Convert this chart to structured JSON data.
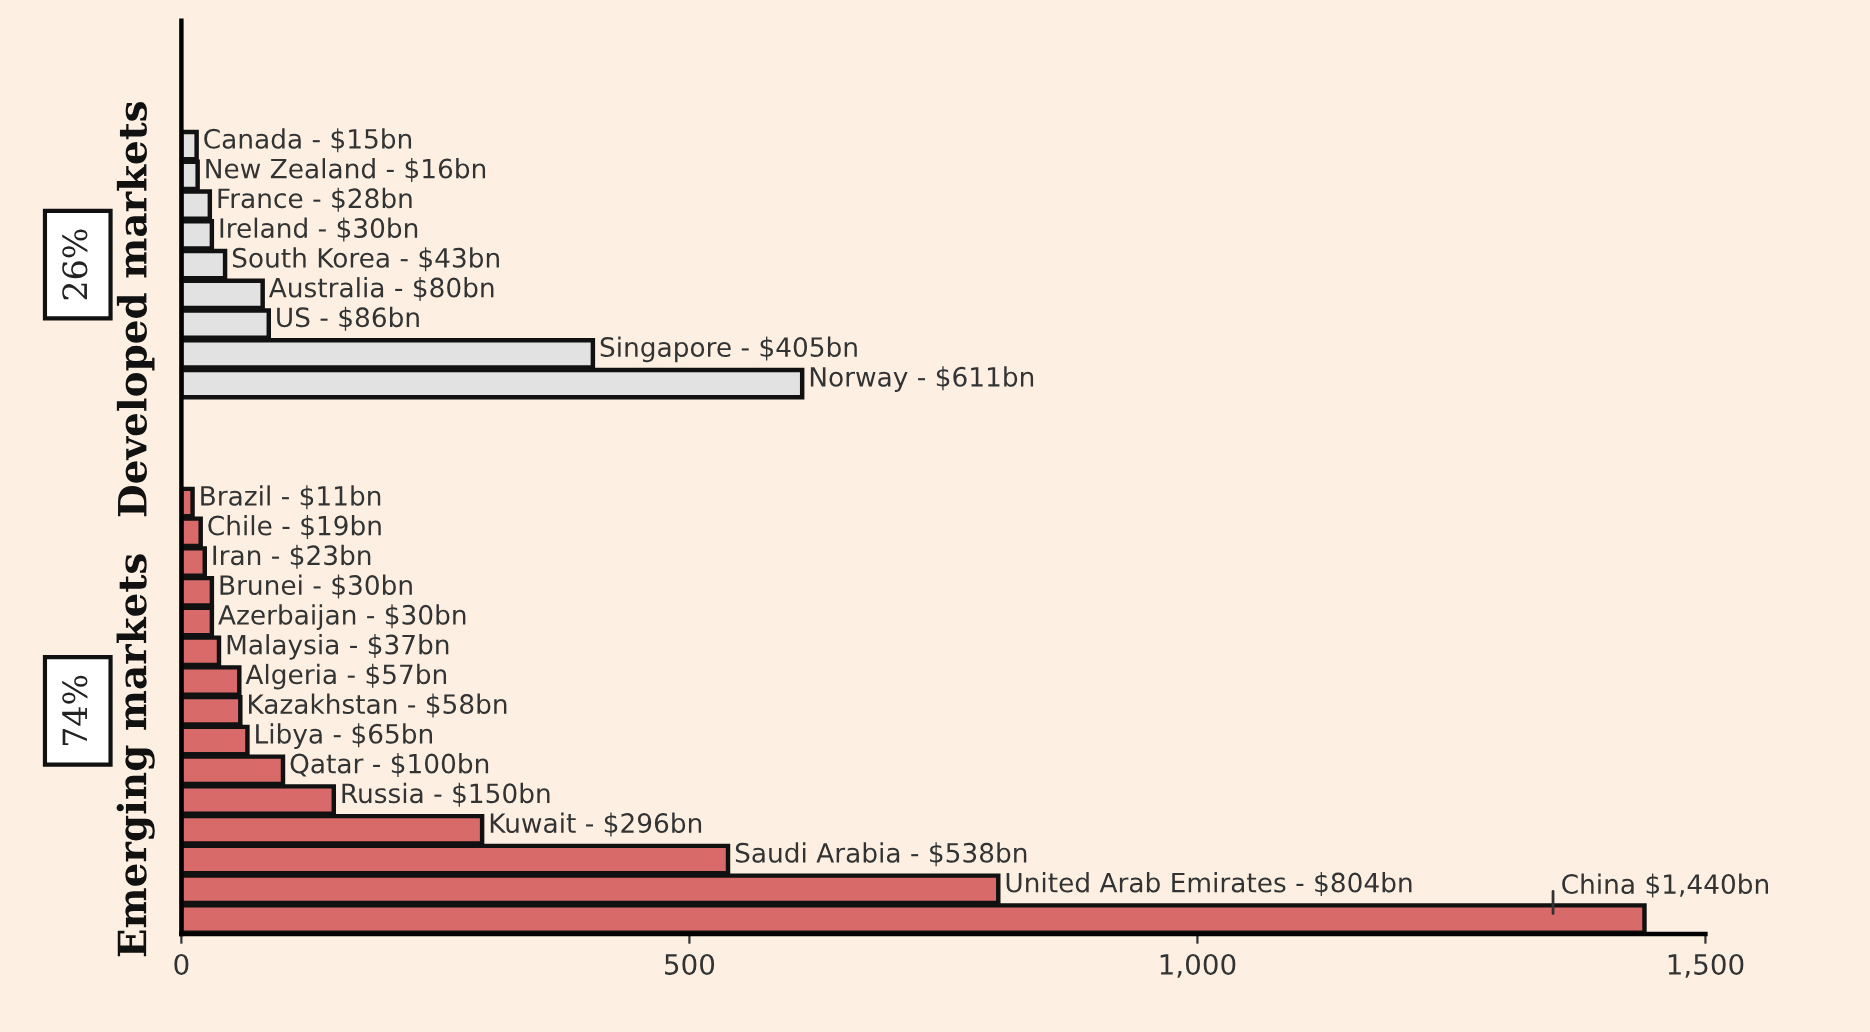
{
  "chart_data": {
    "type": "bar",
    "orientation": "horizontal",
    "categories": [
      null,
      null,
      null,
      "Canada - $15bn",
      "New Zealand - $16bn",
      "France - $28bn",
      "Ireland - $30bn",
      "South Korea - $43bn",
      "Australia - $80bn",
      "US - $86bn",
      "Singapore - $405bn",
      "Norway - $611bn",
      null,
      null,
      null,
      "Brazil - $11bn",
      "Chile - $19bn",
      "Iran - $23bn",
      "Brunei - $30bn",
      "Azerbaijan - $30bn",
      "Malaysia - $37bn",
      "Algeria - $57bn",
      "Kazakhstan - $58bn",
      "Libya - $65bn",
      "Qatar - $100bn",
      "Russia - $150bn",
      "Kuwait - $296bn",
      "Saudi Arabia - $538bn",
      "United Arab Emirates - $804bn",
      null
    ],
    "values": [
      null,
      null,
      null,
      15,
      16,
      28,
      30,
      43,
      80,
      86,
      405,
      611,
      null,
      null,
      null,
      11,
      19,
      23,
      30,
      30,
      37,
      57,
      58,
      65,
      100,
      150,
      296,
      538,
      804,
      1440
    ],
    "colors": [
      null,
      null,
      null,
      "#e2e2e2",
      "#e2e2e2",
      "#e2e2e2",
      "#e2e2e2",
      "#e2e2e2",
      "#e2e2e2",
      "#e2e2e2",
      "#e2e2e2",
      "#e2e2e2",
      null,
      null,
      null,
      "#d96a6a",
      "#d96a6a",
      "#d96a6a",
      "#d96a6a",
      "#d96a6a",
      "#d96a6a",
      "#d96a6a",
      "#d96a6a",
      "#d96a6a",
      "#d96a6a",
      "#d96a6a",
      "#d96a6a",
      "#d96a6a",
      "#d96a6a",
      "#d96a6a"
    ],
    "xlim": [
      0,
      1500
    ],
    "xticks": [
      0,
      500,
      {
        "value": 1000,
        "label": "1,000"
      },
      {
        "value": 1500,
        "label": "1,500"
      }
    ],
    "tick_labels": "x",
    "annotations": [
      "26%",
      "Developed markets",
      "74%",
      "Emerging markets",
      "China $1,440bn"
    ]
  }
}
